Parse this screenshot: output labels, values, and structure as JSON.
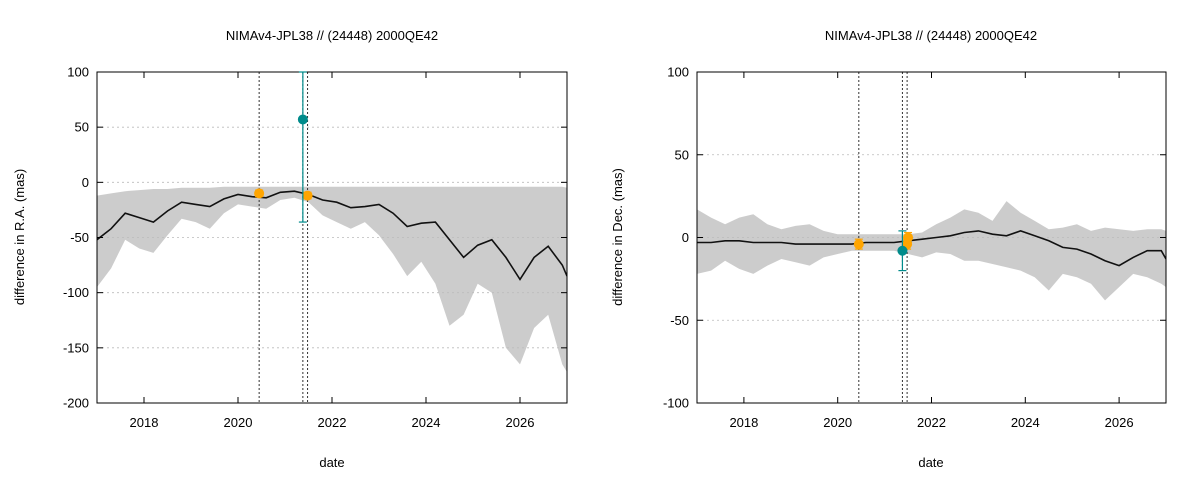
{
  "colors": {
    "envelope": "#cccccc",
    "nominal_line": "#111111",
    "orange_obs": "#ffa500",
    "teal_obs": "#008b8b",
    "grid": "#bbbbbb",
    "vline": "#333333"
  },
  "chart_data": [
    {
      "type": "line",
      "title": "NIMAv4-JPL38 // (24448) 2000QE42",
      "xlabel": "date",
      "ylabel": "difference in R.A. (mas)",
      "xlim": [
        2017.0,
        2027.0
      ],
      "ylim": [
        -200,
        100
      ],
      "xticks": [
        2018,
        2020,
        2022,
        2024,
        2026
      ],
      "yticks": [
        -200,
        -150,
        -100,
        -50,
        0,
        50,
        100
      ],
      "grid": true,
      "vertical_lines": [
        2020.45,
        2021.38,
        2021.48
      ],
      "nominal": {
        "x": [
          2017.0,
          2017.3,
          2017.6,
          2017.9,
          2018.2,
          2018.5,
          2018.8,
          2019.1,
          2019.4,
          2019.7,
          2020.0,
          2020.3,
          2020.6,
          2020.9,
          2021.2,
          2021.5,
          2021.8,
          2022.1,
          2022.4,
          2022.7,
          2023.0,
          2023.3,
          2023.6,
          2023.9,
          2024.2,
          2024.5,
          2024.8,
          2025.1,
          2025.4,
          2025.7,
          2026.0,
          2026.3,
          2026.6,
          2026.9,
          2027.0
        ],
        "y": [
          -52,
          -42,
          -28,
          -32,
          -36,
          -26,
          -18,
          -20,
          -22,
          -15,
          -11,
          -13,
          -14,
          -9,
          -8,
          -11,
          -16,
          -18,
          -23,
          -22,
          -20,
          -28,
          -40,
          -37,
          -36,
          -52,
          -68,
          -57,
          -52,
          -68,
          -88,
          -68,
          -58,
          -75,
          -85
        ]
      },
      "envelope": {
        "x": [
          2017.0,
          2017.3,
          2017.6,
          2017.9,
          2018.2,
          2018.5,
          2018.8,
          2019.1,
          2019.4,
          2019.7,
          2020.0,
          2020.3,
          2020.6,
          2020.9,
          2021.2,
          2021.5,
          2021.8,
          2022.1,
          2022.4,
          2022.7,
          2023.0,
          2023.3,
          2023.6,
          2023.9,
          2024.2,
          2024.5,
          2024.8,
          2025.1,
          2025.4,
          2025.7,
          2026.0,
          2026.3,
          2026.6,
          2026.9,
          2027.0
        ],
        "upper": [
          -12,
          -10,
          -8,
          -7,
          -6,
          -6,
          -5,
          -5,
          -5,
          -4,
          -4,
          -4,
          -4,
          -4,
          -4,
          -4,
          -4,
          -4,
          -4,
          -4,
          -4,
          -4,
          -4,
          -4,
          -4,
          -4,
          -4,
          -4,
          -4,
          -4,
          -4,
          -4,
          -4,
          -4,
          -5
        ],
        "lower": [
          -95,
          -78,
          -52,
          -60,
          -64,
          -48,
          -33,
          -36,
          -42,
          -28,
          -20,
          -22,
          -24,
          -16,
          -14,
          -18,
          -30,
          -36,
          -42,
          -36,
          -48,
          -65,
          -85,
          -72,
          -92,
          -130,
          -120,
          -92,
          -100,
          -150,
          -165,
          -132,
          -120,
          -165,
          -172
        ]
      },
      "observations": [
        {
          "x": 2020.45,
          "y": -10,
          "err": 3,
          "color": "orange"
        },
        {
          "x": 2021.48,
          "y": -12,
          "err": 3,
          "color": "orange"
        },
        {
          "x": 2021.38,
          "y": 57,
          "err": 93,
          "color": "teal"
        }
      ]
    },
    {
      "type": "line",
      "title": "NIMAv4-JPL38 // (24448) 2000QE42",
      "xlabel": "date",
      "ylabel": "difference in Dec. (mas)",
      "xlim": [
        2017.0,
        2027.0
      ],
      "ylim": [
        -100,
        100
      ],
      "xticks": [
        2018,
        2020,
        2022,
        2024,
        2026
      ],
      "yticks": [
        -100,
        -50,
        0,
        50,
        100
      ],
      "grid": true,
      "vertical_lines": [
        2020.45,
        2021.38,
        2021.48
      ],
      "nominal": {
        "x": [
          2017.0,
          2017.3,
          2017.6,
          2017.9,
          2018.2,
          2018.5,
          2018.8,
          2019.1,
          2019.4,
          2019.7,
          2020.0,
          2020.3,
          2020.6,
          2020.9,
          2021.2,
          2021.5,
          2021.8,
          2022.1,
          2022.4,
          2022.7,
          2023.0,
          2023.3,
          2023.6,
          2023.9,
          2024.2,
          2024.5,
          2024.8,
          2025.1,
          2025.4,
          2025.7,
          2026.0,
          2026.3,
          2026.6,
          2026.9,
          2027.0
        ],
        "y": [
          -3,
          -3,
          -2,
          -2,
          -3,
          -3,
          -3,
          -4,
          -4,
          -4,
          -4,
          -4,
          -3,
          -3,
          -3,
          -2,
          -1,
          0,
          1,
          3,
          4,
          2,
          1,
          4,
          1,
          -2,
          -6,
          -7,
          -10,
          -14,
          -17,
          -12,
          -8,
          -8,
          -13
        ]
      },
      "envelope": {
        "x": [
          2017.0,
          2017.3,
          2017.6,
          2017.9,
          2018.2,
          2018.5,
          2018.8,
          2019.1,
          2019.4,
          2019.7,
          2020.0,
          2020.3,
          2020.6,
          2020.9,
          2021.2,
          2021.5,
          2021.8,
          2022.1,
          2022.4,
          2022.7,
          2023.0,
          2023.3,
          2023.6,
          2023.9,
          2024.2,
          2024.5,
          2024.8,
          2025.1,
          2025.4,
          2025.7,
          2026.0,
          2026.3,
          2026.6,
          2026.9,
          2027.0
        ],
        "upper": [
          17,
          12,
          8,
          12,
          14,
          8,
          5,
          7,
          8,
          4,
          2,
          2,
          2,
          2,
          2,
          2,
          3,
          8,
          12,
          17,
          15,
          10,
          22,
          15,
          10,
          5,
          6,
          8,
          4,
          6,
          5,
          4,
          5,
          5,
          4
        ],
        "lower": [
          -22,
          -20,
          -14,
          -19,
          -22,
          -17,
          -13,
          -15,
          -17,
          -12,
          -10,
          -8,
          -8,
          -8,
          -8,
          -10,
          -12,
          -9,
          -10,
          -14,
          -14,
          -16,
          -18,
          -20,
          -24,
          -32,
          -22,
          -24,
          -28,
          -38,
          -30,
          -22,
          -24,
          -28,
          -30
        ]
      },
      "observations": [
        {
          "x": 2020.45,
          "y": -4,
          "err": 3,
          "color": "orange"
        },
        {
          "x": 2021.48,
          "y": -4,
          "err": 3,
          "color": "orange"
        },
        {
          "x": 2021.5,
          "y": 0,
          "err": 3,
          "color": "orange"
        },
        {
          "x": 2021.38,
          "y": -8,
          "err": 12,
          "color": "teal"
        }
      ]
    }
  ]
}
